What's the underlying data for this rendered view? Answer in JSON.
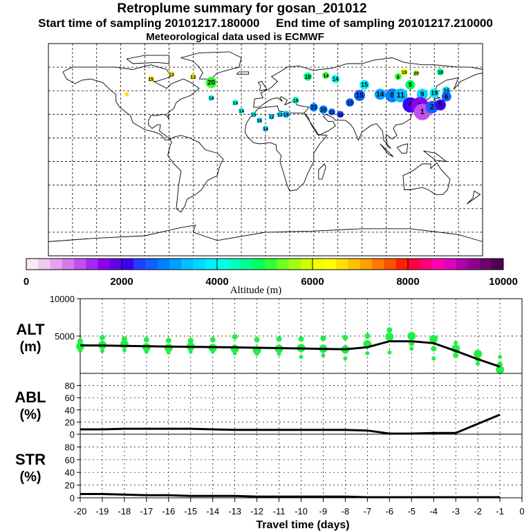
{
  "header": {
    "title": "Retroplume summary for gosan_201012",
    "subtitle": "Start time of sampling 20101217.180000     End time of sampling 20101217.210000",
    "met_line": "Meteorological data used is ECMWF"
  },
  "colorbar": {
    "label": "Altitude (m)",
    "min": 0,
    "max": 10000,
    "tick_labels": [
      "0",
      "2000",
      "4000",
      "6000",
      "8000",
      "10000"
    ],
    "tick_values": [
      0,
      2000,
      4000,
      6000,
      8000,
      10000
    ],
    "colors": [
      "#f8e8f8",
      "#f0c8f0",
      "#e8a0f0",
      "#d878f0",
      "#c050f0",
      "#a828f0",
      "#8c00f0",
      "#6400e8",
      "#3c00f0",
      "#2040ff",
      "#1060ff",
      "#0080ff",
      "#00a0ff",
      "#00c0ff",
      "#00d8ff",
      "#00f0ff",
      "#00ffe8",
      "#00ffc0",
      "#00ff90",
      "#00ff60",
      "#30ff30",
      "#70ff20",
      "#a0ff10",
      "#d0ff00",
      "#f0ff00",
      "#ffff00",
      "#ffe000",
      "#ffc000",
      "#ffa000",
      "#ff7800",
      "#ff5000",
      "#ff2000",
      "#ff0040",
      "#ff0080",
      "#ff00b0",
      "#e000c0",
      "#b000b0",
      "#900090",
      "#700070",
      "#500050"
    ]
  },
  "chart_data": [
    {
      "type": "line",
      "panel": "ALT",
      "ylabel": "ALT\n(m)",
      "ylabel_lines": [
        "ALT",
        "(m)"
      ],
      "ylim": [
        0,
        10000
      ],
      "yticks": [
        5000,
        10000
      ],
      "ytick_labels": [
        "5000",
        "10000"
      ],
      "x": [
        -20,
        -19,
        -18,
        -17,
        -16,
        -15,
        -14,
        -13,
        -12,
        -11,
        -10,
        -9,
        -8,
        -7,
        -6,
        -5,
        -4,
        -3,
        -2,
        -1
      ],
      "values": [
        3750,
        3720,
        3680,
        3630,
        3590,
        3560,
        3520,
        3480,
        3430,
        3380,
        3330,
        3280,
        3230,
        3500,
        4300,
        4300,
        4050,
        3000,
        1900,
        900
      ],
      "scatter_color": "#22ee44",
      "scatter": [
        {
          "x": -20,
          "y": 3600
        },
        {
          "x": -20,
          "y": 4300
        },
        {
          "x": -20,
          "y": 3000
        },
        {
          "x": -19,
          "y": 3800
        },
        {
          "x": -19,
          "y": 4800
        },
        {
          "x": -19,
          "y": 3000
        },
        {
          "x": -18,
          "y": 3900
        },
        {
          "x": -18,
          "y": 4600
        },
        {
          "x": -18,
          "y": 3100
        },
        {
          "x": -17,
          "y": 3500
        },
        {
          "x": -17,
          "y": 4500
        },
        {
          "x": -17,
          "y": 2900
        },
        {
          "x": -16,
          "y": 3400
        },
        {
          "x": -16,
          "y": 4400
        },
        {
          "x": -16,
          "y": 2800
        },
        {
          "x": -15,
          "y": 3600
        },
        {
          "x": -15,
          "y": 4400
        },
        {
          "x": -15,
          "y": 2900
        },
        {
          "x": -14,
          "y": 3400
        },
        {
          "x": -14,
          "y": 4500
        },
        {
          "x": -14,
          "y": 2900
        },
        {
          "x": -13,
          "y": 3300
        },
        {
          "x": -13,
          "y": 4900
        },
        {
          "x": -13,
          "y": 2700
        },
        {
          "x": -12,
          "y": 3100
        },
        {
          "x": -12,
          "y": 4500
        },
        {
          "x": -12,
          "y": 2600
        },
        {
          "x": -11,
          "y": 3300
        },
        {
          "x": -11,
          "y": 4600
        },
        {
          "x": -11,
          "y": 2600
        },
        {
          "x": -10,
          "y": 3400
        },
        {
          "x": -10,
          "y": 4600
        },
        {
          "x": -10,
          "y": 2200
        },
        {
          "x": -9,
          "y": 3300
        },
        {
          "x": -9,
          "y": 4700
        },
        {
          "x": -9,
          "y": 2400
        },
        {
          "x": -8,
          "y": 3200
        },
        {
          "x": -8,
          "y": 4800
        },
        {
          "x": -8,
          "y": 2000
        },
        {
          "x": -7,
          "y": 3900
        },
        {
          "x": -7,
          "y": 5000
        },
        {
          "x": -7,
          "y": 2700
        },
        {
          "x": -6,
          "y": 4900
        },
        {
          "x": -6,
          "y": 5800
        },
        {
          "x": -6,
          "y": 2800
        },
        {
          "x": -5,
          "y": 5000
        },
        {
          "x": -5,
          "y": 4000
        },
        {
          "x": -5,
          "y": 3300
        },
        {
          "x": -4,
          "y": 4600
        },
        {
          "x": -4,
          "y": 3300
        },
        {
          "x": -4,
          "y": 2000
        },
        {
          "x": -3,
          "y": 3300
        },
        {
          "x": -3,
          "y": 2400
        },
        {
          "x": -3,
          "y": 4100
        },
        {
          "x": -2,
          "y": 2600
        },
        {
          "x": -2,
          "y": 1900
        },
        {
          "x": -2,
          "y": 1300
        },
        {
          "x": -1,
          "y": 500
        },
        {
          "x": -1,
          "y": 1200
        },
        {
          "x": -1,
          "y": 2200
        }
      ]
    },
    {
      "type": "line",
      "panel": "ABL",
      "ylabel_lines": [
        "ABL",
        "(%)"
      ],
      "ylim": [
        0,
        100
      ],
      "yticks": [
        0,
        20,
        40,
        60,
        80
      ],
      "ytick_labels": [
        "0",
        "20",
        "40",
        "60",
        "80"
      ],
      "x": [
        -20,
        -19,
        -18,
        -17,
        -16,
        -15,
        -14,
        -13,
        -12,
        -11,
        -10,
        -9,
        -8,
        -7,
        -6,
        -5,
        -4,
        -3,
        -2,
        -1
      ],
      "values": [
        8,
        8,
        9,
        9,
        9,
        9,
        8,
        7,
        7,
        7,
        7,
        7,
        7,
        6,
        1,
        1,
        2,
        2,
        17,
        32
      ]
    },
    {
      "type": "line",
      "panel": "STR",
      "ylabel_lines": [
        "STR",
        "(%)"
      ],
      "ylim": [
        0,
        100
      ],
      "yticks": [
        0,
        20,
        40,
        60,
        80
      ],
      "ytick_labels": [
        "0",
        "20",
        "40",
        "60",
        "80"
      ],
      "xlabel": "Travel time (days)",
      "xticks": [
        -20,
        -19,
        -18,
        -17,
        -16,
        -15,
        -14,
        -13,
        -12,
        -11,
        -10,
        -9,
        -8,
        -7,
        -6,
        -5,
        -4,
        -3,
        -2,
        -1,
        0
      ],
      "xtick_labels": [
        "-20",
        "-19",
        "-18",
        "-17",
        "-16",
        "-15",
        "-14",
        "-13",
        "-12",
        "-11",
        "-10",
        "-9",
        "-8",
        "-7",
        "-6",
        "-5",
        "-4",
        "-3",
        "-2",
        "-1",
        "0"
      ],
      "x": [
        -20,
        -19,
        -18,
        -17,
        -16,
        -15,
        -14,
        -13,
        -12,
        -11,
        -10,
        -9,
        -8,
        -7,
        -6,
        -5,
        -4,
        -3,
        -2,
        -1
      ],
      "values": [
        6,
        6,
        5,
        4,
        4,
        3,
        3,
        3,
        2,
        2,
        2,
        2,
        2,
        1,
        1,
        1,
        1,
        1,
        1,
        1
      ]
    }
  ],
  "map": {
    "type": "scatter",
    "lon_range": [
      -180,
      180
    ],
    "lat_range": [
      -90,
      90
    ],
    "plumes": [
      {
        "lon": -45,
        "lat": 57,
        "alt": 5200,
        "label": "20",
        "size": 8
      },
      {
        "lon": -78,
        "lat": 64,
        "alt": 6500,
        "label": "13",
        "size": 4
      },
      {
        "lon": -60,
        "lat": 62,
        "alt": 6500,
        "label": "13",
        "size": 4
      },
      {
        "lon": -95,
        "lat": 60,
        "alt": 6500,
        "label": "15",
        "size": 4
      },
      {
        "lon": -115,
        "lat": 47,
        "alt": 6500,
        "label": "",
        "size": 3
      },
      {
        "lon": -45,
        "lat": 44,
        "alt": 4200,
        "label": "19",
        "size": 4
      },
      {
        "lon": -25,
        "lat": 40,
        "alt": 4200,
        "label": "14",
        "size": 4
      },
      {
        "lon": -20,
        "lat": 33,
        "alt": 4000,
        "label": "14",
        "size": 4
      },
      {
        "lon": -10,
        "lat": 30,
        "alt": 4000,
        "label": "15",
        "size": 4
      },
      {
        "lon": -5,
        "lat": 25,
        "alt": 3800,
        "label": "16",
        "size": 4
      },
      {
        "lon": 0,
        "lat": 18,
        "alt": 3700,
        "label": "14",
        "size": 4
      },
      {
        "lon": 5,
        "lat": 28,
        "alt": 3600,
        "label": "12",
        "size": 4
      },
      {
        "lon": 12,
        "lat": 30,
        "alt": 3500,
        "label": "13",
        "size": 4
      },
      {
        "lon": 17,
        "lat": 30,
        "alt": 3400,
        "label": "15",
        "size": 5
      },
      {
        "lon": 25,
        "lat": 42,
        "alt": 4300,
        "label": "15",
        "size": 5
      },
      {
        "lon": 35,
        "lat": 62,
        "alt": 4500,
        "label": "18",
        "size": 6
      },
      {
        "lon": 50,
        "lat": 63,
        "alt": 5000,
        "label": "14",
        "size": 5
      },
      {
        "lon": 58,
        "lat": 60,
        "alt": 4000,
        "label": "14",
        "size": 6
      },
      {
        "lon": 82,
        "lat": 55,
        "alt": 3900,
        "label": "15",
        "size": 7
      },
      {
        "lon": 40,
        "lat": 36,
        "alt": 2800,
        "label": "23",
        "size": 6
      },
      {
        "lon": 48,
        "lat": 34,
        "alt": 2900,
        "label": "20",
        "size": 6
      },
      {
        "lon": 55,
        "lat": 32,
        "alt": 2500,
        "label": "23",
        "size": 5
      },
      {
        "lon": 62,
        "lat": 30,
        "alt": 2400,
        "label": "18",
        "size": 5
      },
      {
        "lon": 70,
        "lat": 40,
        "alt": 2600,
        "label": "15",
        "size": 6
      },
      {
        "lon": 78,
        "lat": 46,
        "alt": 2700,
        "label": "15",
        "size": 8
      },
      {
        "lon": 95,
        "lat": 47,
        "alt": 3000,
        "label": "14",
        "size": 8
      },
      {
        "lon": 105,
        "lat": 46,
        "alt": 2900,
        "label": "8",
        "size": 10
      },
      {
        "lon": 112,
        "lat": 46,
        "alt": 3300,
        "label": "11",
        "size": 10
      },
      {
        "lon": 120,
        "lat": 55,
        "alt": 4800,
        "label": "5",
        "size": 7
      },
      {
        "lon": 130,
        "lat": 47,
        "alt": 3500,
        "label": "9",
        "size": 8
      },
      {
        "lon": 140,
        "lat": 48,
        "alt": 3800,
        "label": "19",
        "size": 7
      },
      {
        "lon": 150,
        "lat": 50,
        "alt": 3500,
        "label": "16",
        "size": 6
      },
      {
        "lon": 110,
        "lat": 62,
        "alt": 5000,
        "label": "8",
        "size": 5
      },
      {
        "lon": 115,
        "lat": 66,
        "alt": 6000,
        "label": "19",
        "size": 5
      },
      {
        "lon": 125,
        "lat": 65,
        "alt": 5500,
        "label": "20",
        "size": 4
      },
      {
        "lon": 145,
        "lat": 66,
        "alt": 4700,
        "label": "18",
        "size": 5
      },
      {
        "lon": 120,
        "lat": 38,
        "alt": 2200,
        "label": "4",
        "size": 11
      },
      {
        "lon": 128,
        "lat": 37,
        "alt": 1500,
        "label": "3",
        "size": 13
      },
      {
        "lon": 130,
        "lat": 32,
        "alt": 1000,
        "label": "1",
        "size": 12
      },
      {
        "lon": 138,
        "lat": 36,
        "alt": 2500,
        "label": "2",
        "size": 9
      },
      {
        "lon": 145,
        "lat": 38,
        "alt": 2000,
        "label": "5",
        "size": 8
      },
      {
        "lon": 150,
        "lat": 45,
        "alt": 2600,
        "label": "6",
        "size": 7
      }
    ]
  }
}
